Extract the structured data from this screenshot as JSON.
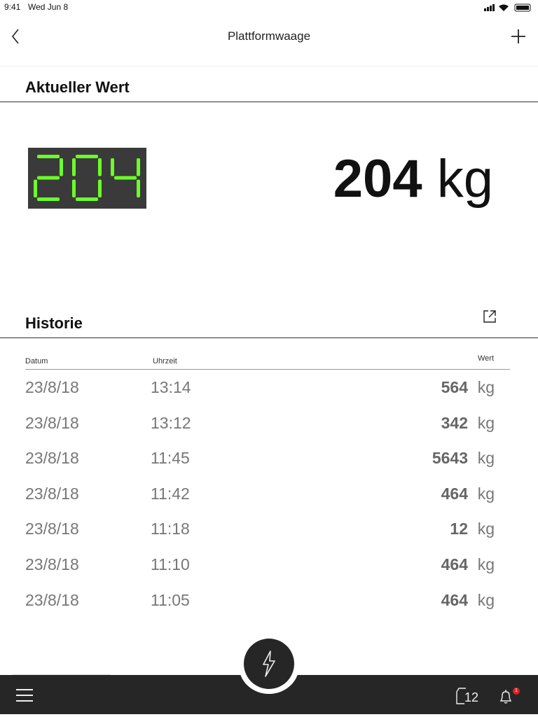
{
  "status": {
    "time": "9:41",
    "date": "Wed Jun 8"
  },
  "nav": {
    "title": "Plattformwaage",
    "back_icon": "chevron-left-icon",
    "add_icon": "plus-icon"
  },
  "current": {
    "heading": "Aktueller Wert",
    "display": "204",
    "value": "204",
    "unit": "kg",
    "display_color": "#6cff2a"
  },
  "history": {
    "heading": "Historie",
    "export_icon": "external-link-icon",
    "columns": {
      "date": "Datum",
      "time": "Uhrzeit",
      "value": "Wert"
    },
    "rows": [
      {
        "date": "23/8/18",
        "time": "13:14",
        "value": "564",
        "unit": "kg"
      },
      {
        "date": "23/8/18",
        "time": "13:12",
        "value": "342",
        "unit": "kg"
      },
      {
        "date": "23/8/18",
        "time": "11:45",
        "value": "5643",
        "unit": "kg"
      },
      {
        "date": "23/8/18",
        "time": "11:42",
        "value": "464",
        "unit": "kg"
      },
      {
        "date": "23/8/18",
        "time": "11:18",
        "value": "12",
        "unit": "kg"
      },
      {
        "date": "23/8/18",
        "time": "11:10",
        "value": "464",
        "unit": "kg"
      },
      {
        "date": "23/8/18",
        "time": "11:05",
        "value": "464",
        "unit": "kg"
      }
    ]
  },
  "tabbar": {
    "counter": "12",
    "notification_badge": "1",
    "badge_color": "#e02020"
  }
}
